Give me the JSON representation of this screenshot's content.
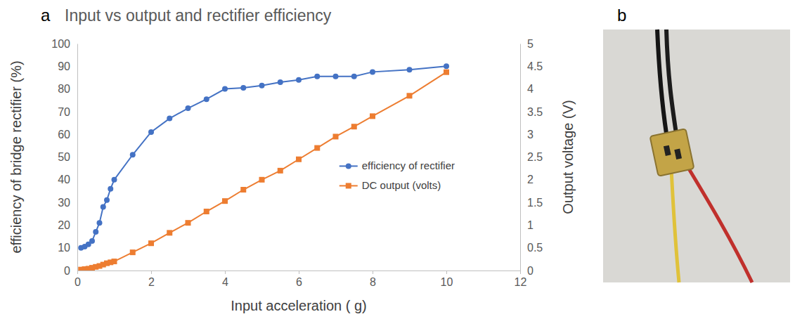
{
  "chart_data": {
    "type": "line",
    "panel_label": "a",
    "title": "Input vs output and rectifier efficiency",
    "x_label": "Input acceleration ( g)",
    "y_label": "efficiency of bridge rectifier (%)",
    "y2_label": "Output voltage (V)",
    "x": [
      0.1,
      0.2,
      0.3,
      0.4,
      0.5,
      0.6,
      0.7,
      0.8,
      0.9,
      1,
      1.5,
      2,
      2.5,
      3,
      3.5,
      4,
      4.5,
      5,
      5.5,
      6,
      6.5,
      7,
      7.5,
      8,
      9,
      10
    ],
    "series": [
      {
        "name": "efficiency of rectifier",
        "color": "#4472c4",
        "marker": "circle",
        "values": [
          10,
          10.5,
          11.5,
          13,
          17,
          21,
          28,
          31,
          36,
          40,
          51,
          61,
          67,
          71.5,
          75.5,
          80,
          80.5,
          81.5,
          83,
          84,
          85.5,
          85.5,
          85.5,
          87.5,
          88.5,
          90
        ]
      },
      {
        "name": "DC output (volts)",
        "color": "#ed7d31",
        "marker": "square",
        "axis": "y2",
        "values": [
          0.02,
          0.03,
          0.04,
          0.06,
          0.08,
          0.1,
          0.13,
          0.16,
          0.18,
          0.2,
          0.4,
          0.6,
          0.83,
          1.05,
          1.3,
          1.53,
          1.78,
          2.0,
          2.2,
          2.45,
          2.7,
          2.95,
          3.17,
          3.4,
          3.85,
          4.37
        ]
      }
    ],
    "xlim": [
      0,
      12
    ],
    "xticks": [
      0,
      2,
      4,
      6,
      8,
      10,
      12
    ],
    "ylim": [
      0,
      100
    ],
    "yticks": [
      0,
      10,
      20,
      30,
      40,
      50,
      60,
      70,
      80,
      90,
      100
    ],
    "y2lim": [
      0,
      5
    ],
    "y2ticks": [
      0,
      0.5,
      1,
      1.5,
      2,
      2.5,
      3,
      3.5,
      4,
      4.5,
      5
    ],
    "grid": false,
    "legend": "right"
  },
  "photo": {
    "panel_label": "b"
  }
}
